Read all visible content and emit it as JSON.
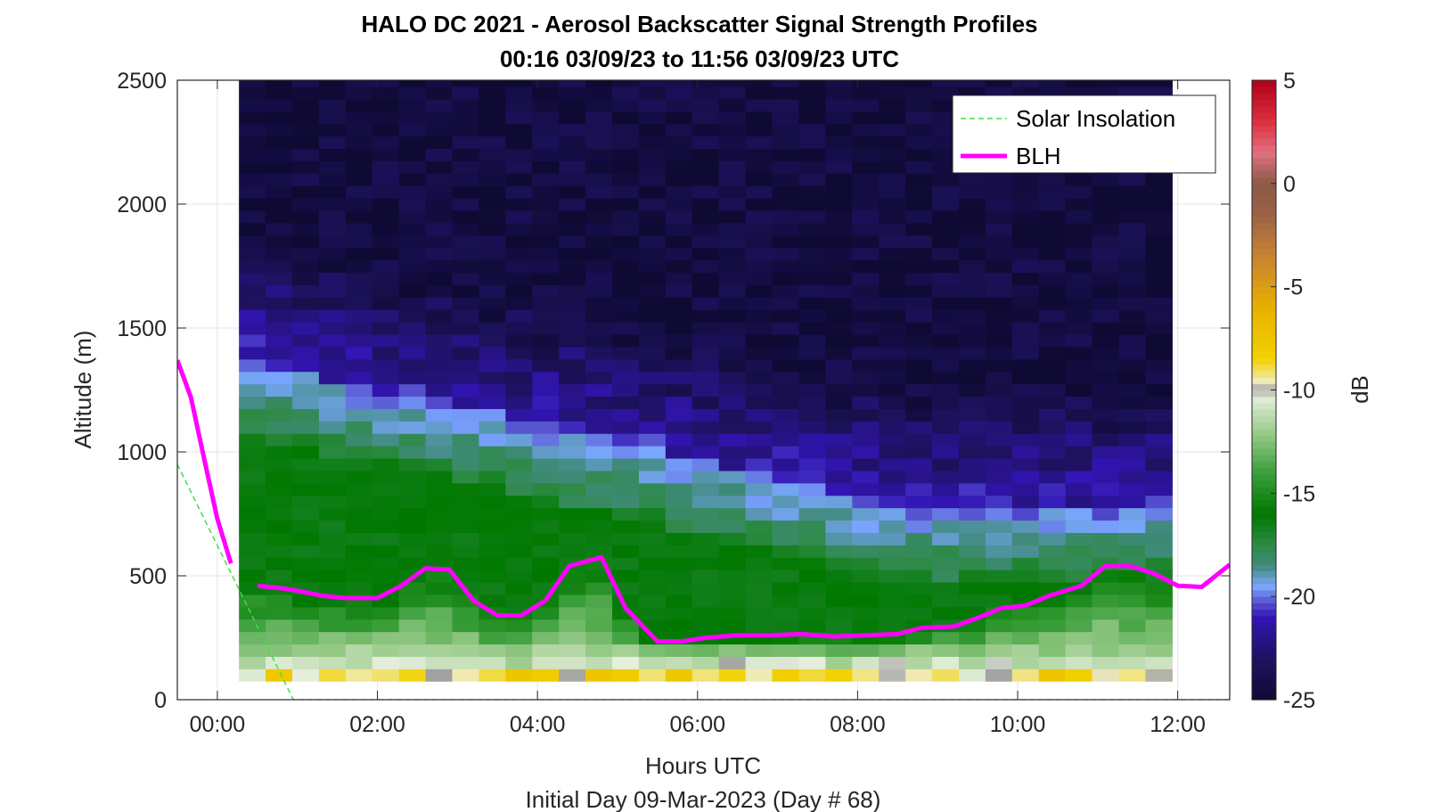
{
  "chart_data": {
    "type": "heatmap",
    "title": "HALO DC 2021 - Aerosol Backscatter Signal Strength Profiles",
    "subtitle": "00:16 03/09/23 to 11:56 03/09/23  UTC",
    "xlabel": "Hours UTC",
    "ylabel": "Altitude (m)",
    "footer": "Initial Day 09-Mar-2023 (Day # 68)",
    "xlim": [
      -0.5,
      12.65
    ],
    "ylim": [
      0,
      2500
    ],
    "x_ticks": [
      0,
      2,
      4,
      6,
      8,
      10,
      12
    ],
    "x_tick_labels": [
      "00:00",
      "02:00",
      "04:00",
      "06:00",
      "08:00",
      "10:00",
      "12:00"
    ],
    "y_ticks": [
      0,
      500,
      1000,
      1500,
      2000,
      2500
    ],
    "y_tick_labels": [
      "0",
      "500",
      "1000",
      "1500",
      "2000",
      "2500"
    ],
    "grid": true,
    "legend_position": "top-right",
    "colorbar": {
      "label": "dB",
      "min": -25,
      "max": 5,
      "ticks": [
        5,
        0,
        -5,
        -10,
        -15,
        -20,
        -25
      ],
      "tick_labels": [
        "5",
        "0",
        "-5",
        "-10",
        "-15",
        "-20",
        "-25"
      ],
      "stops": [
        {
          "v": -25,
          "c": "#0f0a33"
        },
        {
          "v": -23,
          "c": "#1e1260"
        },
        {
          "v": -21,
          "c": "#3214b4"
        },
        {
          "v": -20.2,
          "c": "#5a5ad2"
        },
        {
          "v": -19.5,
          "c": "#7aa7ff"
        },
        {
          "v": -18.5,
          "c": "#3f8a7a"
        },
        {
          "v": -17.5,
          "c": "#2e8a46"
        },
        {
          "v": -16,
          "c": "#007800"
        },
        {
          "v": -14,
          "c": "#3a9e3a"
        },
        {
          "v": -12,
          "c": "#9ccc8c"
        },
        {
          "v": -10.3,
          "c": "#e6eedc"
        },
        {
          "v": -10,
          "c": "#a0a0a0"
        },
        {
          "v": -9.6,
          "c": "#f0ecc0"
        },
        {
          "v": -8.5,
          "c": "#f2d200"
        },
        {
          "v": -6,
          "c": "#e8b000"
        },
        {
          "v": -3.5,
          "c": "#c88232"
        },
        {
          "v": -1.5,
          "c": "#9a6246"
        },
        {
          "v": 0,
          "c": "#8a5a46"
        },
        {
          "v": 1.5,
          "c": "#e07080"
        },
        {
          "v": 3,
          "c": "#dc3040"
        },
        {
          "v": 5,
          "c": "#b00018"
        }
      ]
    },
    "heatmap": {
      "x_start": 0.27,
      "x_end": 11.93,
      "columns": 35,
      "y_start": 75,
      "y_end": 2500,
      "row_height": 50
    },
    "series": [
      {
        "name": "Solar Insolation",
        "style": "dashed",
        "color": "#44dd44",
        "x": [
          -0.5,
          0.95,
          12.65
        ],
        "y": [
          950,
          0,
          0
        ]
      },
      {
        "name": "BLH",
        "style": "solid",
        "color": "#ff00ff",
        "segments": [
          {
            "x": [
              -0.5,
              -0.33,
              -0.17,
              0.0,
              0.17
            ],
            "y": [
              1370,
              1220,
              980,
              730,
              550
            ]
          },
          {
            "x": [
              0.5,
              0.8,
              1.0,
              1.3,
              1.6,
              1.8,
              2.0,
              2.3,
              2.6,
              2.9,
              3.2,
              3.5,
              3.8,
              4.1,
              4.4,
              4.8,
              5.1,
              5.5,
              5.8,
              6.1,
              6.5,
              6.9,
              7.3,
              7.7,
              8.1,
              8.5,
              8.8,
              9.2,
              9.5,
              9.8,
              10.1,
              10.4,
              10.8,
              11.1,
              11.4,
              11.7,
              12.0,
              12.3,
              12.65
            ],
            "y": [
              460,
              450,
              440,
              420,
              410,
              410,
              410,
              460,
              530,
              525,
              400,
              340,
              340,
              400,
              540,
              575,
              370,
              235,
              235,
              250,
              260,
              260,
              265,
              255,
              260,
              265,
              290,
              295,
              330,
              370,
              380,
              420,
              460,
              540,
              540,
              510,
              460,
              455,
              545
            ]
          }
        ]
      }
    ]
  }
}
